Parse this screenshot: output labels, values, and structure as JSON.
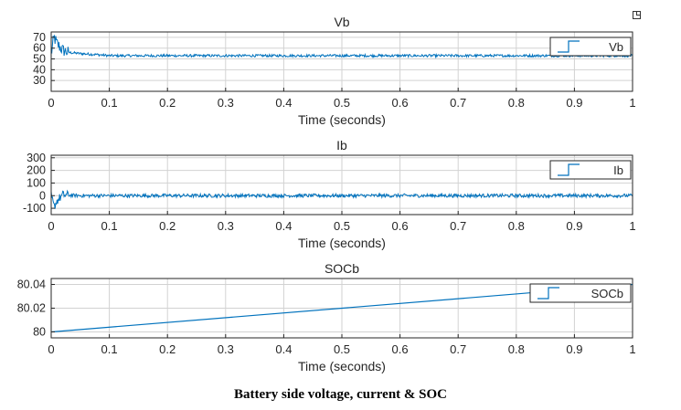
{
  "caption": "Battery side voltage, current & SOC",
  "colors": {
    "line": "#0072bd",
    "grid": "#d2d2d2",
    "axes": "#262626"
  },
  "icons": {
    "undock": "undock-icon"
  },
  "chart_data": [
    {
      "type": "line",
      "title": "Vb",
      "xlabel": "Time (seconds)",
      "ylabel": "",
      "xlim": [
        0,
        1
      ],
      "ylim": [
        20,
        75
      ],
      "xticks": [
        0,
        0.1,
        0.2,
        0.3,
        0.4,
        0.5,
        0.6,
        0.7,
        0.8,
        0.9,
        1
      ],
      "yticks": [
        30,
        40,
        50,
        60,
        70
      ],
      "grid": true,
      "legend": "top-right",
      "series": [
        {
          "name": "Vb",
          "x": [
            0,
            0.005,
            0.01,
            0.02,
            0.03,
            0.05,
            0.08,
            0.1,
            0.2,
            0.3,
            0.4,
            0.5,
            0.6,
            0.7,
            0.8,
            0.9,
            1
          ],
          "y": [
            55,
            70,
            64,
            58,
            56,
            55,
            54,
            53,
            53,
            53,
            53,
            53,
            53,
            53,
            53,
            53,
            53
          ]
        }
      ]
    },
    {
      "type": "line",
      "title": "Ib",
      "xlabel": "Time (seconds)",
      "ylabel": "",
      "xlim": [
        0,
        1
      ],
      "ylim": [
        -150,
        320
      ],
      "xticks": [
        0,
        0.1,
        0.2,
        0.3,
        0.4,
        0.5,
        0.6,
        0.7,
        0.8,
        0.9,
        1
      ],
      "yticks": [
        -100,
        0,
        100,
        200,
        300
      ],
      "grid": true,
      "legend": "top-right",
      "series": [
        {
          "name": "Ib",
          "x": [
            0,
            0.005,
            0.01,
            0.02,
            0.05,
            0.1,
            0.2,
            0.3,
            0.4,
            0.5,
            0.6,
            0.7,
            0.8,
            0.9,
            1
          ],
          "y": [
            0,
            -90,
            -40,
            5,
            0,
            0,
            0,
            0,
            0,
            0,
            0,
            0,
            0,
            0,
            0
          ]
        }
      ]
    },
    {
      "type": "line",
      "title": "SOCb",
      "xlabel": "Time (seconds)",
      "ylabel": "",
      "xlim": [
        0,
        1
      ],
      "ylim": [
        79.995,
        80.045
      ],
      "xticks": [
        0,
        0.1,
        0.2,
        0.3,
        0.4,
        0.5,
        0.6,
        0.7,
        0.8,
        0.9,
        1
      ],
      "yticks": [
        80,
        80.02,
        80.04
      ],
      "ytick_labels": [
        "80",
        "80.02",
        "80.04"
      ],
      "grid": true,
      "legend": "top-right",
      "series": [
        {
          "name": "SOCb",
          "x": [
            0,
            1
          ],
          "y": [
            80.0,
            80.04
          ]
        }
      ]
    }
  ]
}
